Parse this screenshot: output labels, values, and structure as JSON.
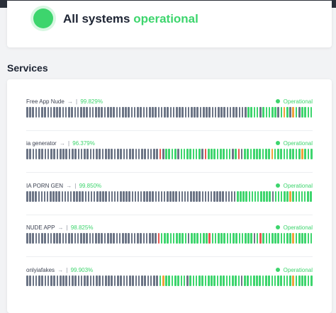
{
  "header": {
    "status_prefix": "All systems",
    "status_word": "operational"
  },
  "services_heading": "Services",
  "colors": {
    "operational": "#3dd56d",
    "light_green": "#a8eabe",
    "degraded": "#f0a13a",
    "outage": "#e8554e",
    "no_data": "#6b7485"
  },
  "services": [
    {
      "name": "Free App Nude",
      "arrow": "→",
      "uptime": "99.829%",
      "status": "Operational",
      "bars": "ggggggggggggggggggggggggggggggggggggggggggggggggggggggggggggggggggggggggggGGGGgGGGGGgGoGgoGgGGGG"
    },
    {
      "name": "ia generator",
      "arrow": "→",
      "uptime": "96.379%",
      "status": "Operational",
      "bars": "ggggggggggggggggggggggggggggggggggggggggggggrgGGGGgGGGGGGGgrGGGGGGGGgGrgGGGGGGGGGoGGGGGGGGGoGGG"
    },
    {
      "name": "IA PORN GEN",
      "arrow": "→",
      "uptime": "99.850%",
      "status": "Operational",
      "bars": "ggggggggggggggggggggggggggggggggggggggggggggggggggggggggggggggggggggggggGGGGGGGGGGGGgGGGGGoGGGGGGG"
    },
    {
      "name": "NUDE APP",
      "arrow": "→",
      "uptime": "98.825%",
      "status": "Operational",
      "bars": "ggggggggggggggggggggggggggggggggggggggggggggrGGGGGGGGGgGGGGGGrGGGGGGGGGGGGGGgGrGGGGGGGGGGoGGGGGG"
    },
    {
      "name": "onlyiafakes",
      "arrow": "→",
      "uptime": "99.903%",
      "status": "Operational",
      "bars": "ggggggggggggggggggggggggggggggggggggggggggggGoGGGGGGGgGGGGGGGGGGGGGGGGGgGGGGGGGGGGGGGGGGoGGGGGG"
    }
  ]
}
